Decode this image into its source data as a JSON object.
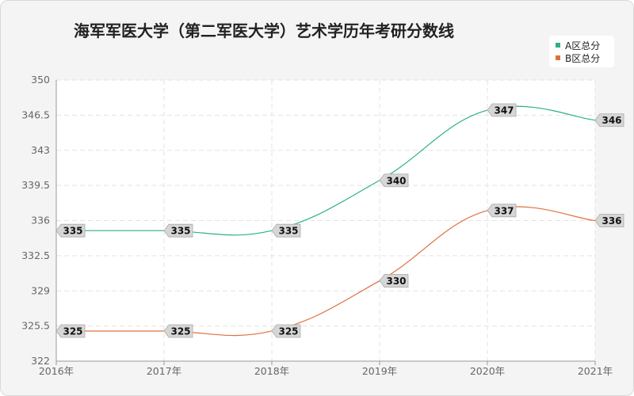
{
  "title": "海军军医大学（第二军医大学）艺术学历年考研分数线",
  "chart_data": {
    "type": "line",
    "title": "海军军医大学（第二军医大学）艺术学历年考研分数线",
    "categories": [
      "2016年",
      "2017年",
      "2018年",
      "2019年",
      "2020年",
      "2021年"
    ],
    "series": [
      {
        "name": "A区总分",
        "color": "#2bb08a",
        "values": [
          335,
          335,
          335,
          340,
          347,
          346
        ]
      },
      {
        "name": "B区总分",
        "color": "#e0703e",
        "values": [
          325,
          325,
          325,
          330,
          337,
          336
        ]
      }
    ],
    "ylim": [
      322,
      350
    ],
    "yticks": [
      "322",
      "325.5",
      "329",
      "332.5",
      "336",
      "339.5",
      "343",
      "346.5",
      "350"
    ],
    "grid": true,
    "legend": "top-right"
  }
}
